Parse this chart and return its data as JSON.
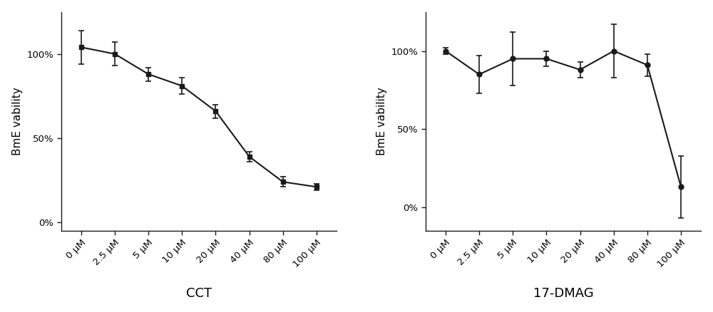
{
  "cct": {
    "x_labels": [
      "0 μM",
      "2.5 μM",
      "5 μM",
      "10 μM",
      "20 μM",
      "40 μM",
      "80 μM",
      "100 μM"
    ],
    "y_values": [
      104,
      100,
      88,
      81,
      66,
      39,
      24,
      21
    ],
    "y_err": [
      10,
      7,
      4,
      5,
      4,
      3,
      3,
      2
    ],
    "xlabel": "CCT",
    "ylabel": "BmE vability",
    "marker": "s",
    "ylim": [
      -5,
      125
    ],
    "yticks": [
      0,
      50,
      100
    ],
    "ytick_labels": [
      "0%",
      "50%",
      "100%"
    ]
  },
  "dmag": {
    "x_labels": [
      "0 μM",
      "2.5 μM",
      "5 μM",
      "10 μM",
      "20 μM",
      "40 μM",
      "80 μM",
      "100 μM"
    ],
    "y_values": [
      100,
      85,
      95,
      95,
      88,
      100,
      91,
      13
    ],
    "y_err": [
      2,
      12,
      17,
      5,
      5,
      17,
      7,
      20
    ],
    "xlabel": "17-DMAG",
    "ylabel": "BmE vability",
    "marker": "o",
    "ylim": [
      -15,
      125
    ],
    "yticks": [
      0,
      50,
      100
    ],
    "ytick_labels": [
      "0%",
      "50%",
      "100%"
    ]
  },
  "line_color": "#1a1a1a",
  "bg_color": "#ffffff",
  "tick_fontsize": 9.5,
  "ylabel_fontsize": 11,
  "xlabel_fontsize": 13,
  "marker_size": 5,
  "line_width": 1.5,
  "cap_size": 3,
  "figure_width": 10.0,
  "figure_height": 4.38,
  "dpi": 100
}
